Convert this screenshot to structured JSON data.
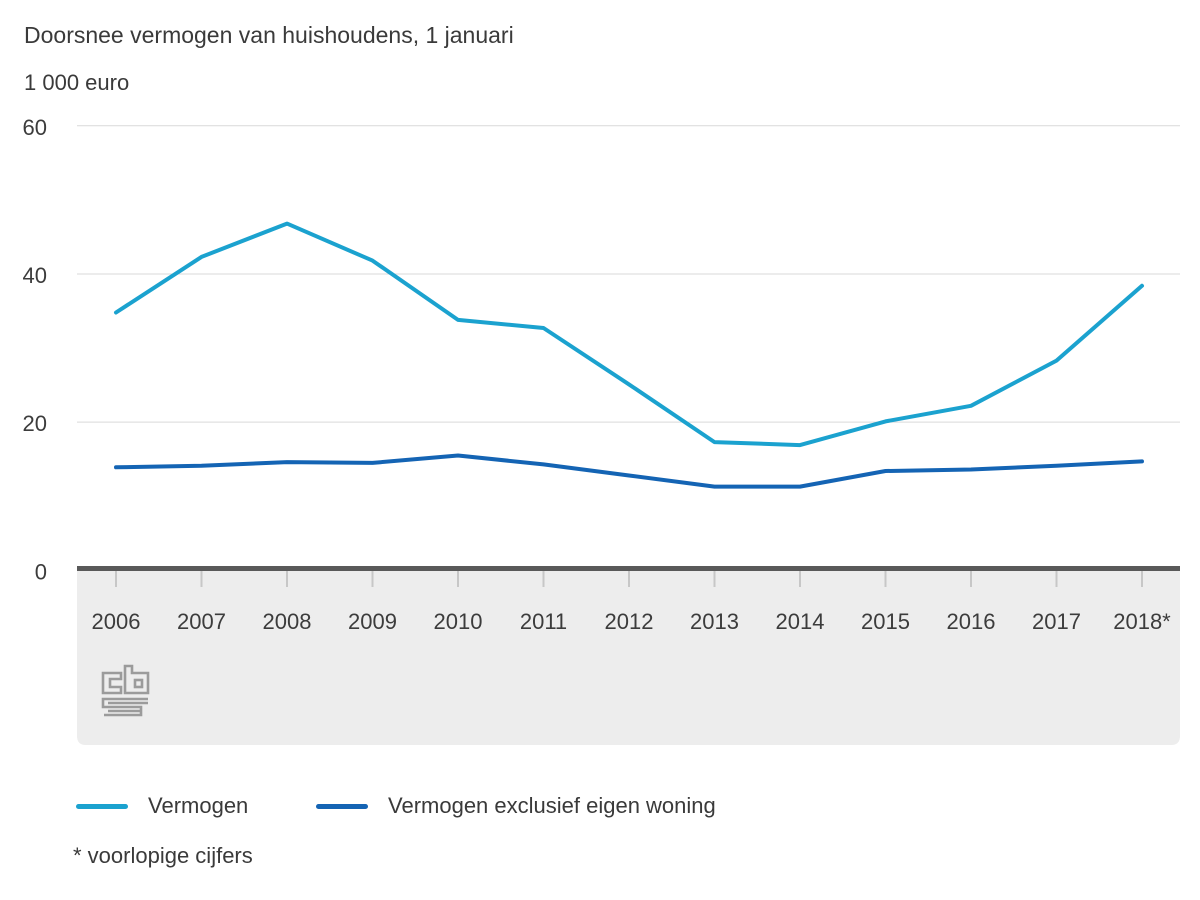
{
  "chart_data": {
    "type": "line",
    "title": "Doorsnee vermogen van huishoudens, 1 januari",
    "unit_label": "1 000 euro",
    "xlabel": "",
    "ylabel": "1 000 euro",
    "categories": [
      "2006",
      "2007",
      "2008",
      "2009",
      "2010",
      "2011",
      "2012",
      "2013",
      "2014",
      "2015",
      "2016",
      "2017",
      "2018*"
    ],
    "series": [
      {
        "name": "Vermogen",
        "color": "#1ba2cf",
        "values": [
          34.8,
          42.3,
          46.8,
          41.8,
          33.8,
          32.7,
          25.1,
          17.3,
          16.9,
          20.1,
          22.2,
          28.3,
          38.4
        ]
      },
      {
        "name": "Vermogen exclusief eigen woning",
        "color": "#1464b4",
        "values": [
          13.9,
          14.1,
          14.6,
          14.5,
          15.5,
          14.3,
          12.8,
          11.3,
          11.3,
          13.4,
          13.6,
          14.1,
          14.7
        ]
      }
    ],
    "ylim": [
      0,
      60
    ],
    "yticks": [
      0,
      20,
      40,
      60
    ],
    "grid": true,
    "legend_position": "bottom",
    "footnote": "* voorlopige cijfers"
  },
  "colors": {
    "background": "#ffffff",
    "grid_line": "#d9d9d9",
    "zero_line": "#595959",
    "axis_band": "#ededed",
    "tick_mark": "#c7c7c7",
    "label_text": "#3c3c3c",
    "logo_gray": "#9b9b9b"
  },
  "branding": {
    "logo": "cbs-logo"
  }
}
